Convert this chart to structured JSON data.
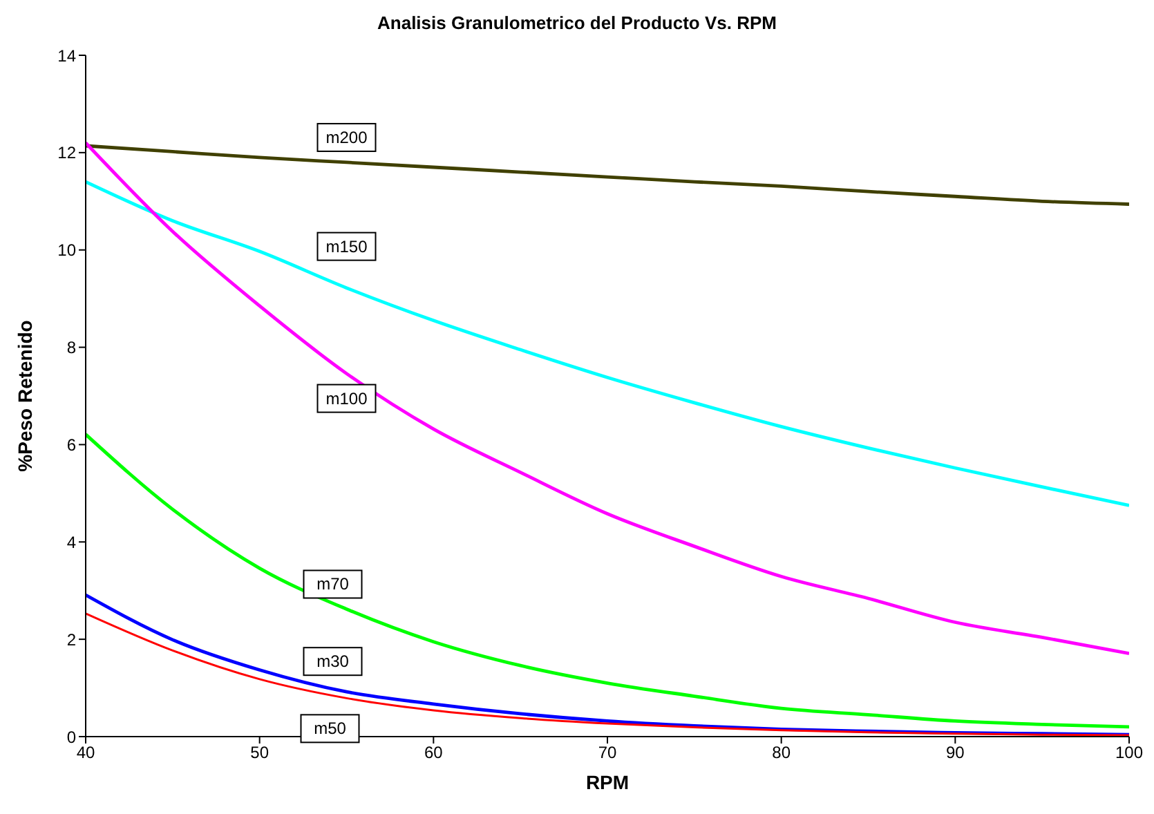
{
  "chart_data": {
    "type": "line",
    "title": "Analisis Granulometrico del Producto Vs. RPM",
    "xlabel": "RPM",
    "ylabel": "%Peso Retenido",
    "x": [
      40,
      45,
      50,
      55,
      60,
      65,
      70,
      75,
      80,
      85,
      90,
      95,
      100
    ],
    "xlim": [
      40,
      100
    ],
    "xticks": [
      40,
      50,
      60,
      70,
      80,
      90,
      100
    ],
    "ylim": [
      0,
      14
    ],
    "yticks": [
      0,
      2,
      4,
      6,
      8,
      10,
      12,
      14
    ],
    "series": [
      {
        "name": "m200",
        "color": "#404000",
        "values": [
          12.14,
          12.02,
          11.9,
          11.8,
          11.7,
          11.6,
          11.5,
          11.4,
          11.31,
          11.2,
          11.1,
          11.0,
          10.94
        ]
      },
      {
        "name": "m150",
        "color": "#00ffff",
        "values": [
          11.4,
          10.6,
          9.97,
          9.22,
          8.55,
          7.95,
          7.38,
          6.86,
          6.37,
          5.93,
          5.52,
          5.13,
          4.75
        ]
      },
      {
        "name": "m100",
        "color": "#ff00ff",
        "values": [
          12.2,
          10.38,
          8.85,
          7.46,
          6.32,
          5.43,
          4.58,
          3.91,
          3.29,
          2.84,
          2.35,
          2.04,
          1.71
        ]
      },
      {
        "name": "m70",
        "color": "#00ff00",
        "values": [
          6.21,
          4.67,
          3.46,
          2.62,
          1.95,
          1.46,
          1.1,
          0.83,
          0.58,
          0.45,
          0.32,
          0.25,
          0.2
        ]
      },
      {
        "name": "m30",
        "color": "#0000ff",
        "values": [
          2.91,
          1.99,
          1.37,
          0.92,
          0.67,
          0.47,
          0.32,
          0.22,
          0.15,
          0.11,
          0.08,
          0.06,
          0.04
        ]
      },
      {
        "name": "m50",
        "color": "#ff0000",
        "values": [
          2.53,
          1.77,
          1.18,
          0.79,
          0.54,
          0.38,
          0.27,
          0.19,
          0.13,
          0.09,
          0.06,
          0.04,
          0.03
        ]
      }
    ]
  }
}
